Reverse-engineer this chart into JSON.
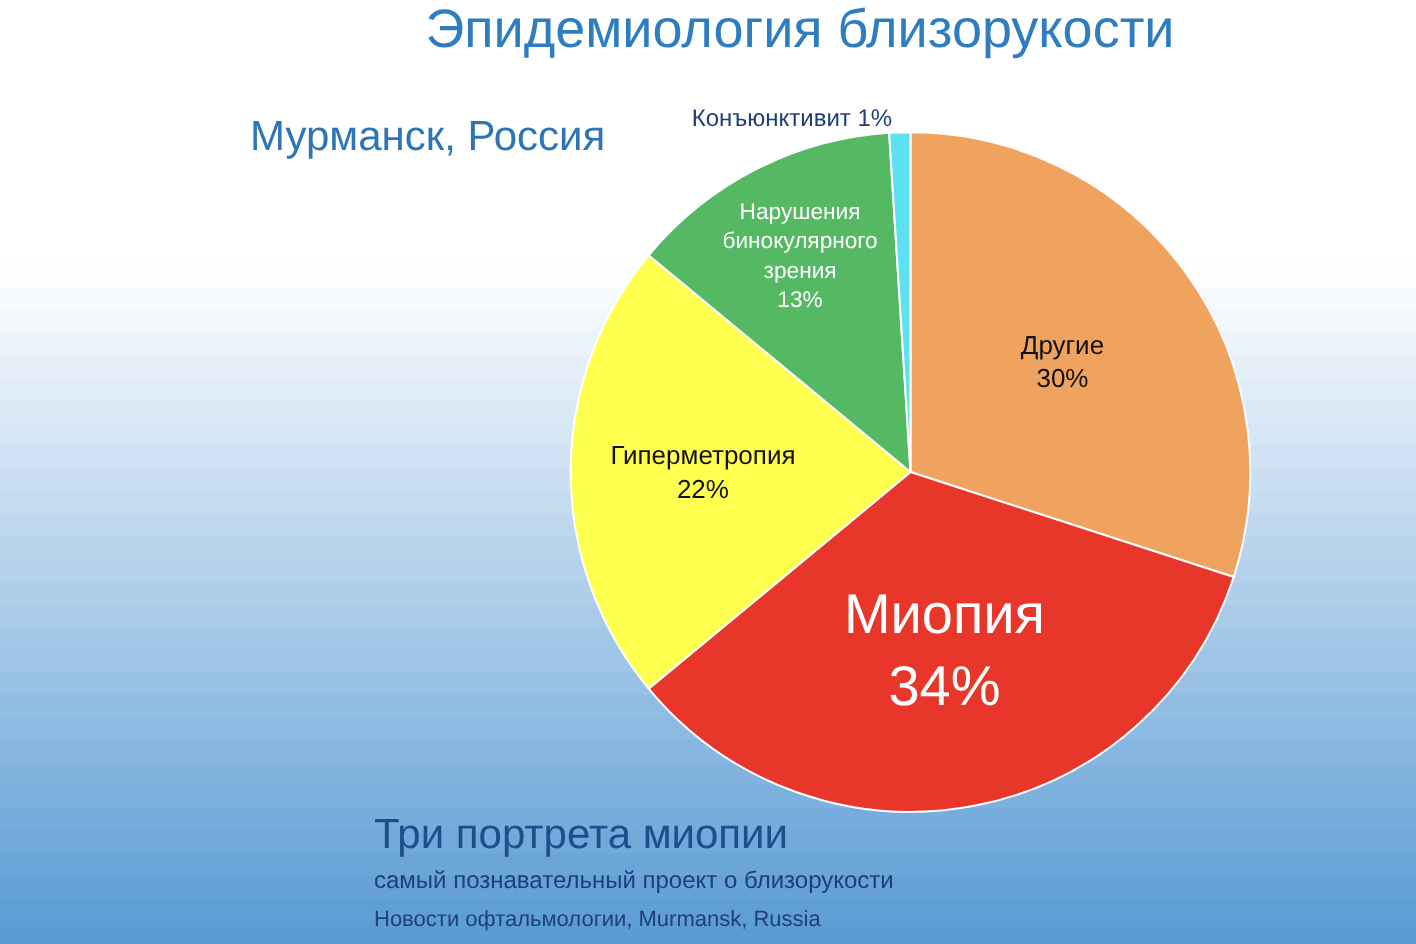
{
  "chart_data": {
    "type": "pie",
    "title": "Эпидемиология близорукости",
    "subtitle": "Мурманск, Россия",
    "categories": [
      "Другие",
      "Миопия",
      "Гиперметропия",
      "Нарушения бинокулярного зрения",
      "Конъюнктивит"
    ],
    "values": [
      30,
      34,
      22,
      13,
      1
    ],
    "colors": [
      "#f0a35e",
      "#e8372a",
      "#ffff4f",
      "#55b963",
      "#5ce1f0"
    ],
    "value_labels": [
      "30%",
      "34%",
      "22%",
      "13%",
      "1%"
    ],
    "annotations": [
      "Три портрета миопии",
      "самый познавательный проект о близорукости",
      "Новости офтальмологии, Murmansk, Russia"
    ],
    "legend": false
  }
}
